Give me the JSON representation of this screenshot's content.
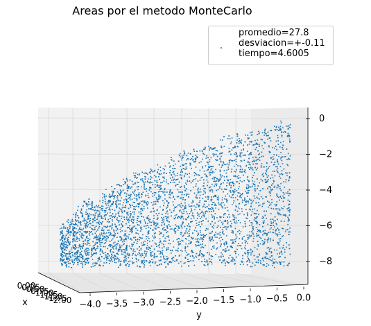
{
  "chart_data": {
    "type": "scatter",
    "projection": "3d",
    "title": "Areas por el metodo MonteCarlo",
    "xlabel": "x",
    "ylabel": "y",
    "zlabel": "",
    "xlim": [
      0.0,
      2.0
    ],
    "ylim": [
      -4.0,
      0.0
    ],
    "zlim": [
      -8.5,
      0.0
    ],
    "x_ticks": [
      "0.00",
      "0.25",
      "0.50",
      "0.75",
      "1.00",
      "1.25",
      "1.50",
      "1.75",
      "2.00"
    ],
    "y_ticks": [
      "−4.0",
      "−3.5",
      "−3.0",
      "−2.5",
      "−2.0",
      "−1.5",
      "−1.0",
      "−0.5",
      "0.0"
    ],
    "z_ticks": [
      "0",
      "−2",
      "−4",
      "−6",
      "−8"
    ],
    "legend_position": "upper right",
    "legend_lines": [
      "promedio=27.8",
      "desviacion=+-0.11",
      "tiempo=4.6005"
    ],
    "grid": true,
    "point_color": "#1f77b4",
    "series": [
      {
        "region": "points y in [-4, 0], top boundary z rising from about -6.2 at y=-4 to about 0 at y=0, bottom z about -8",
        "boundary": {
          "y": [
            -4.0,
            -3.5,
            -3.0,
            -2.5,
            -2.0,
            -1.5,
            -1.0,
            -0.5,
            0.0
          ],
          "z_top": [
            -6.2,
            -4.6,
            -3.6,
            -2.8,
            -2.0,
            -1.4,
            -0.9,
            -0.5,
            0.0
          ],
          "z_bottom": -8.0
        }
      }
    ]
  }
}
